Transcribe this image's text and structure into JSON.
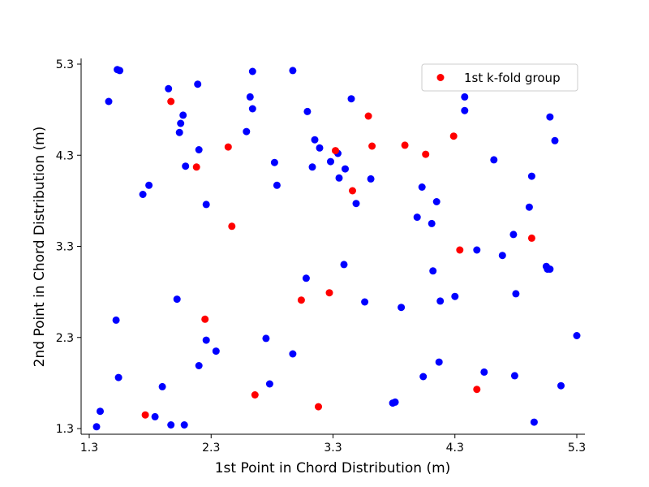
{
  "chart_data": {
    "type": "scatter",
    "title": "",
    "xlabel": "1st Point in Chord Distribution (m)",
    "ylabel": "2nd Point in Chord Distribution (m)",
    "xlim": [
      1.3,
      5.3
    ],
    "ylim": [
      1.3,
      5.3
    ],
    "xticks": [
      "1.3",
      "2.3",
      "3.3",
      "4.3",
      "5.3"
    ],
    "yticks": [
      "1.3",
      "2.3",
      "3.3",
      "4.3",
      "5.3"
    ],
    "grid": false,
    "legend_position": "top-right",
    "series": [
      {
        "name": "",
        "color": "#0000ff",
        "points": [
          [
            1.53,
            5.24
          ],
          [
            1.55,
            5.23
          ],
          [
            1.46,
            4.89
          ],
          [
            1.95,
            5.03
          ],
          [
            2.19,
            5.08
          ],
          [
            2.64,
            5.22
          ],
          [
            2.97,
            5.23
          ],
          [
            2.62,
            4.94
          ],
          [
            2.64,
            4.81
          ],
          [
            3.09,
            4.78
          ],
          [
            3.45,
            4.92
          ],
          [
            4.38,
            4.94
          ],
          [
            4.38,
            4.79
          ],
          [
            5.08,
            4.72
          ],
          [
            5.12,
            4.46
          ],
          [
            2.07,
            4.74
          ],
          [
            2.05,
            4.65
          ],
          [
            2.04,
            4.55
          ],
          [
            2.59,
            4.56
          ],
          [
            2.2,
            4.36
          ],
          [
            3.15,
            4.47
          ],
          [
            3.19,
            4.38
          ],
          [
            2.09,
            4.18
          ],
          [
            2.82,
            4.22
          ],
          [
            3.13,
            4.17
          ],
          [
            3.28,
            4.23
          ],
          [
            3.34,
            4.32
          ],
          [
            3.4,
            4.15
          ],
          [
            3.35,
            4.05
          ],
          [
            3.61,
            4.04
          ],
          [
            4.62,
            4.25
          ],
          [
            4.93,
            4.07
          ],
          [
            2.84,
            3.97
          ],
          [
            1.79,
            3.97
          ],
          [
            1.74,
            3.87
          ],
          [
            2.26,
            3.76
          ],
          [
            3.49,
            3.77
          ],
          [
            4.03,
            3.95
          ],
          [
            4.15,
            3.79
          ],
          [
            4.91,
            3.73
          ],
          [
            3.99,
            3.62
          ],
          [
            4.11,
            3.55
          ],
          [
            4.78,
            3.43
          ],
          [
            4.48,
            3.26
          ],
          [
            4.69,
            3.2
          ],
          [
            3.39,
            3.1
          ],
          [
            5.05,
            3.08
          ],
          [
            5.06,
            3.05
          ],
          [
            5.08,
            3.05
          ],
          [
            4.12,
            3.03
          ],
          [
            3.08,
            2.95
          ],
          [
            2.02,
            2.72
          ],
          [
            3.56,
            2.69
          ],
          [
            4.18,
            2.7
          ],
          [
            4.3,
            2.75
          ],
          [
            4.8,
            2.78
          ],
          [
            3.86,
            2.63
          ],
          [
            1.52,
            2.49
          ],
          [
            2.26,
            2.27
          ],
          [
            2.75,
            2.29
          ],
          [
            2.34,
            2.15
          ],
          [
            2.97,
            2.12
          ],
          [
            2.2,
            1.99
          ],
          [
            1.54,
            1.86
          ],
          [
            4.17,
            2.03
          ],
          [
            4.54,
            1.92
          ],
          [
            4.79,
            1.88
          ],
          [
            4.04,
            1.87
          ],
          [
            1.9,
            1.76
          ],
          [
            2.78,
            1.79
          ],
          [
            5.17,
            1.77
          ],
          [
            1.39,
            1.49
          ],
          [
            1.84,
            1.43
          ],
          [
            3.79,
            1.58
          ],
          [
            3.81,
            1.59
          ],
          [
            1.36,
            1.32
          ],
          [
            1.97,
            1.34
          ],
          [
            2.08,
            1.34
          ],
          [
            4.95,
            1.37
          ],
          [
            5.3,
            2.32
          ]
        ]
      },
      {
        "name": "1st k-fold group",
        "color": "#ff0000",
        "points": [
          [
            1.97,
            4.89
          ],
          [
            3.59,
            4.73
          ],
          [
            4.29,
            4.51
          ],
          [
            2.44,
            4.39
          ],
          [
            3.62,
            4.4
          ],
          [
            3.89,
            4.41
          ],
          [
            3.32,
            4.35
          ],
          [
            4.06,
            4.31
          ],
          [
            2.18,
            4.17
          ],
          [
            3.46,
            3.91
          ],
          [
            2.47,
            3.52
          ],
          [
            4.34,
            3.26
          ],
          [
            4.93,
            3.39
          ],
          [
            3.27,
            2.79
          ],
          [
            3.04,
            2.71
          ],
          [
            2.25,
            2.5
          ],
          [
            2.66,
            1.67
          ],
          [
            3.18,
            1.54
          ],
          [
            1.76,
            1.45
          ],
          [
            4.48,
            1.73
          ]
        ]
      }
    ]
  }
}
